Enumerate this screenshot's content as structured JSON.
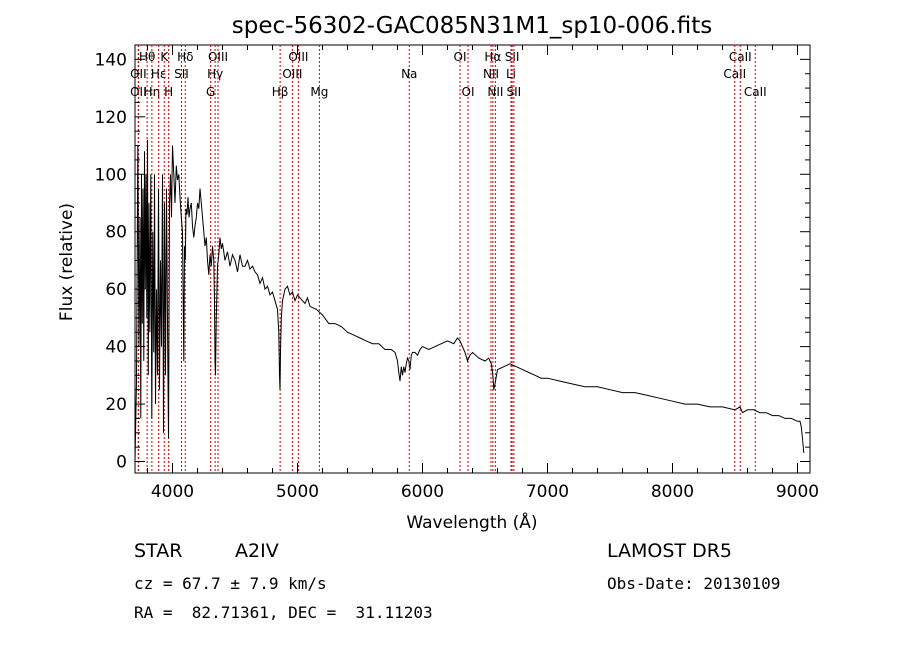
{
  "chart_data": {
    "type": "line",
    "title": "spec-56302-GAC085N31M1_sp10-006.fits",
    "xlabel": "Wavelength (Å)",
    "ylabel": "Flux (relative)",
    "xlim": [
      3700,
      9100
    ],
    "ylim": [
      -4,
      145
    ],
    "x_ticks": [
      4000,
      5000,
      6000,
      7000,
      8000,
      9000
    ],
    "y_ticks": [
      0,
      20,
      40,
      60,
      80,
      100,
      120,
      140
    ],
    "grid": false,
    "line_color": "#000000",
    "marker_color": "#cc0000",
    "series": [
      {
        "x": [
          3700,
          3712,
          3722,
          3732,
          3740,
          3746,
          3752,
          3758,
          3764,
          3770,
          3776,
          3782,
          3788,
          3794,
          3800,
          3806,
          3812,
          3818,
          3826,
          3834,
          3842,
          3850,
          3856,
          3864,
          3872,
          3880,
          3888,
          3896,
          3904,
          3912,
          3920,
          3928,
          3936,
          3944,
          3952,
          3960,
          3968,
          3976,
          3984,
          3992,
          4000,
          4010,
          4020,
          4030,
          4040,
          4050,
          4060,
          4070,
          4080,
          4090,
          4096,
          4102,
          4108,
          4116,
          4124,
          4132,
          4140,
          4150,
          4160,
          4170,
          4180,
          4190,
          4200,
          4210,
          4220,
          4230,
          4240,
          4250,
          4260,
          4270,
          4280,
          4290,
          4300,
          4310,
          4320,
          4330,
          4336,
          4340,
          4344,
          4350,
          4360,
          4370,
          4380,
          4390,
          4400,
          4420,
          4440,
          4460,
          4480,
          4500,
          4520,
          4540,
          4560,
          4580,
          4600,
          4620,
          4640,
          4660,
          4680,
          4700,
          4720,
          4740,
          4760,
          4780,
          4800,
          4820,
          4840,
          4850,
          4856,
          4860,
          4864,
          4870,
          4880,
          4890,
          4900,
          4920,
          4940,
          4960,
          4980,
          5000,
          5020,
          5040,
          5060,
          5080,
          5100,
          5150,
          5200,
          5250,
          5300,
          5350,
          5400,
          5450,
          5500,
          5550,
          5600,
          5650,
          5700,
          5750,
          5780,
          5800,
          5810,
          5820,
          5830,
          5840,
          5850,
          5860,
          5870,
          5880,
          5890,
          5900,
          5910,
          5920,
          5940,
          5960,
          5980,
          6000,
          6050,
          6100,
          6150,
          6200,
          6250,
          6280,
          6300,
          6320,
          6340,
          6360,
          6380,
          6400,
          6450,
          6500,
          6530,
          6550,
          6560,
          6565,
          6570,
          6580,
          6600,
          6650,
          6700,
          6750,
          6800,
          6850,
          6900,
          6950,
          7000,
          7100,
          7200,
          7300,
          7400,
          7500,
          7600,
          7700,
          7800,
          7900,
          8000,
          8100,
          8200,
          8300,
          8400,
          8500,
          8540,
          8560,
          8600,
          8650,
          8700,
          8750,
          8800,
          8850,
          8900,
          8950,
          9000,
          9020,
          9030,
          9040,
          9050
        ],
        "y": [
          0,
          28,
          110,
          40,
          85,
          15,
          100,
          48,
          95,
          35,
          108,
          60,
          100,
          50,
          112,
          30,
          90,
          45,
          100,
          15,
          80,
          38,
          100,
          20,
          60,
          30,
          95,
          25,
          70,
          40,
          100,
          10,
          90,
          30,
          95,
          48,
          8,
          90,
          100,
          85,
          110,
          100,
          90,
          103,
          98,
          100,
          92,
          85,
          80,
          35,
          75,
          70,
          88,
          86,
          92,
          85,
          88,
          90,
          82,
          78,
          82,
          85,
          90,
          88,
          95,
          90,
          85,
          80,
          75,
          78,
          70,
          65,
          72,
          68,
          75,
          70,
          55,
          35,
          30,
          50,
          68,
          72,
          78,
          74,
          76,
          70,
          73,
          68,
          72,
          70,
          66,
          72,
          68,
          68,
          70,
          67,
          68,
          66,
          65,
          62,
          64,
          60,
          61,
          58,
          59,
          56,
          53,
          45,
          30,
          25,
          38,
          50,
          56,
          58,
          60,
          61,
          58,
          59,
          56,
          58,
          57,
          56,
          55,
          57,
          54,
          53,
          51,
          48,
          48,
          47,
          45,
          44,
          43,
          42,
          41,
          41,
          39,
          39,
          38,
          35,
          31,
          28,
          33,
          30,
          33,
          31,
          34,
          36,
          35,
          32,
          37,
          38,
          38,
          37,
          39,
          40,
          39,
          40,
          41,
          42,
          41,
          43,
          42,
          40,
          38,
          35,
          37,
          38,
          36,
          35,
          36,
          34,
          31,
          29,
          25,
          27,
          32,
          33,
          34,
          33,
          32,
          31,
          30,
          29,
          29,
          28,
          27,
          26,
          26,
          25,
          24,
          24,
          23,
          22,
          21,
          20,
          20,
          19,
          19,
          18,
          19,
          17,
          18,
          18,
          17,
          17,
          16,
          16,
          15,
          15,
          14,
          14,
          12,
          8,
          3
        ]
      }
    ],
    "lines": [
      {
        "name": "OII",
        "x": 3727,
        "row": 3
      },
      {
        "name": "Hθ",
        "x": 3797,
        "row": 1
      },
      {
        "name": "OII",
        "x": 3727,
        "row": 2
      },
      {
        "name": "Hη",
        "x": 3835,
        "row": 3
      },
      {
        "name": "Hε",
        "x": 3889,
        "row": 2
      },
      {
        "name": "K",
        "x": 3934,
        "row": 1
      },
      {
        "name": "H",
        "x": 3969,
        "row": 3
      },
      {
        "name": "Hδ",
        "x": 4102,
        "row": 1
      },
      {
        "name": "SII",
        "x": 4072,
        "row": 2
      },
      {
        "name": "G",
        "x": 4305,
        "row": 3
      },
      {
        "name": "OIII",
        "x": 4364,
        "row": 1
      },
      {
        "name": "Hγ",
        "x": 4341,
        "row": 2
      },
      {
        "name": "Hβ",
        "x": 4861,
        "row": 3
      },
      {
        "name": "OIII",
        "x": 4959,
        "row": 2
      },
      {
        "name": "OIII",
        "x": 5007,
        "row": 1
      },
      {
        "name": "Mg",
        "x": 5175,
        "row": 3
      },
      {
        "name": "Na",
        "x": 5894,
        "row": 2
      },
      {
        "name": "OI",
        "x": 6300,
        "row": 1
      },
      {
        "name": "OI",
        "x": 6364,
        "row": 3
      },
      {
        "name": "NII",
        "x": 6548,
        "row": 2
      },
      {
        "name": "Hα",
        "x": 6563,
        "row": 1
      },
      {
        "name": "NII",
        "x": 6583,
        "row": 3
      },
      {
        "name": "SII",
        "x": 6717,
        "row": 1
      },
      {
        "name": "Li",
        "x": 6708,
        "row": 2
      },
      {
        "name": "SII",
        "x": 6731,
        "row": 3
      },
      {
        "name": "CaII",
        "x": 8498,
        "row": 2
      },
      {
        "name": "CaII",
        "x": 8542,
        "row": 1
      },
      {
        "name": "CaII",
        "x": 8662,
        "row": 3
      }
    ]
  },
  "info": {
    "type_label": "STAR",
    "subclass": "A2IV",
    "survey": "LAMOST DR5",
    "cz": "cz = 67.7 ± 7.9 km/s",
    "obs_date": "Obs-Date: 20130109",
    "radec": "RA =  82.71361, DEC =  31.11203"
  }
}
